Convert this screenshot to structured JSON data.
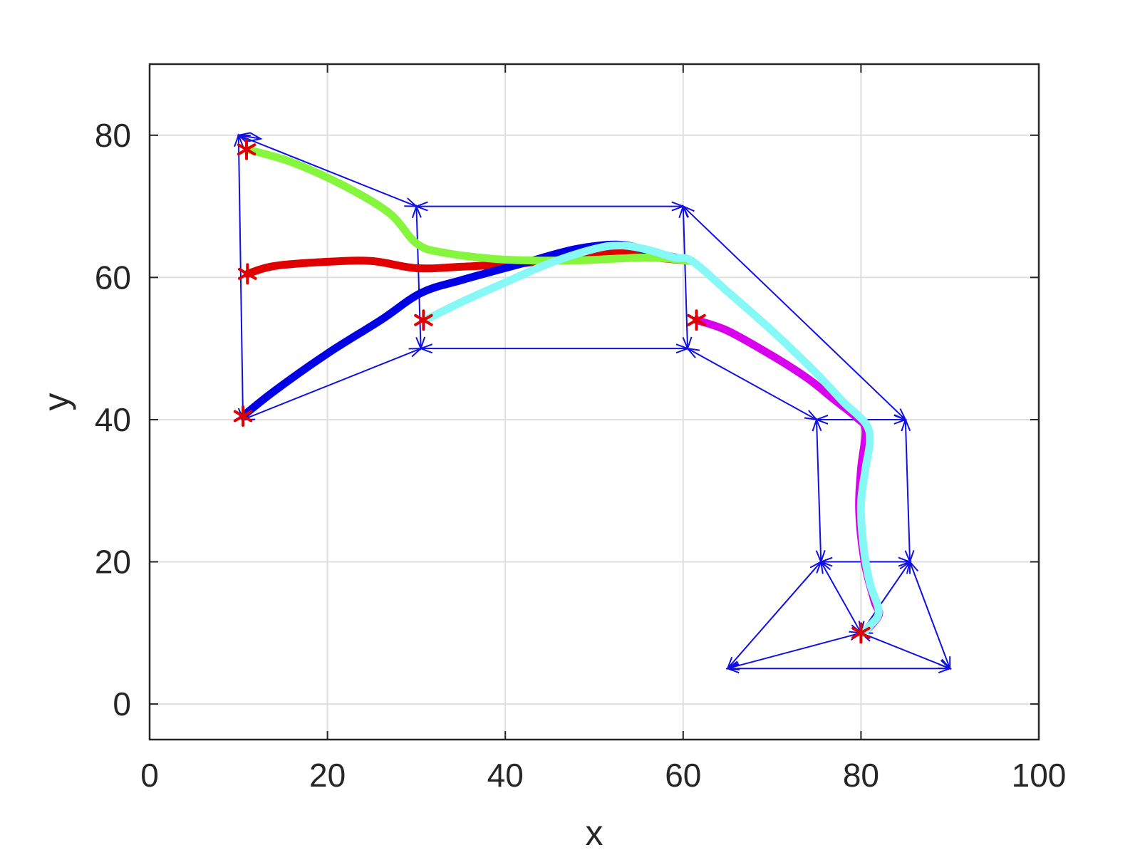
{
  "chart_data": {
    "type": "line",
    "title": "",
    "xlabel": "x",
    "ylabel": "y",
    "xlim": [
      0,
      100
    ],
    "ylim": [
      -5,
      90
    ],
    "xticks": [
      0,
      20,
      40,
      60,
      80,
      100
    ],
    "yticks": [
      0,
      20,
      40,
      60,
      80
    ],
    "grid": true,
    "colors": {
      "axis": "#262626",
      "grid": "#dfdfdf",
      "network": "#1010e6",
      "marker": "#e00000"
    },
    "network_edges": [
      [
        [
          10,
          80
        ],
        [
          12.5,
          79.5
        ]
      ],
      [
        [
          10,
          80
        ],
        [
          30,
          70
        ]
      ],
      [
        [
          10,
          80
        ],
        [
          10.5,
          40
        ]
      ],
      [
        [
          10.5,
          40
        ],
        [
          30.5,
          50
        ]
      ],
      [
        [
          30,
          70
        ],
        [
          30.5,
          50
        ]
      ],
      [
        [
          30,
          70
        ],
        [
          60,
          70
        ]
      ],
      [
        [
          30.5,
          50
        ],
        [
          60.5,
          50
        ]
      ],
      [
        [
          60,
          70
        ],
        [
          60.5,
          50
        ]
      ],
      [
        [
          60,
          70
        ],
        [
          85,
          40
        ]
      ],
      [
        [
          60.5,
          50
        ],
        [
          75,
          40
        ]
      ],
      [
        [
          75,
          40
        ],
        [
          85,
          40
        ]
      ],
      [
        [
          75,
          40
        ],
        [
          75.5,
          20
        ]
      ],
      [
        [
          85,
          40
        ],
        [
          85.5,
          20
        ]
      ],
      [
        [
          75.5,
          20
        ],
        [
          85.5,
          20
        ]
      ],
      [
        [
          75.5,
          20
        ],
        [
          80,
          10
        ]
      ],
      [
        [
          75.5,
          20
        ],
        [
          65,
          5
        ]
      ],
      [
        [
          85.5,
          20
        ],
        [
          80,
          10
        ]
      ],
      [
        [
          85.5,
          20
        ],
        [
          90,
          5
        ]
      ],
      [
        [
          65,
          5
        ],
        [
          90,
          5
        ]
      ],
      [
        [
          65,
          5
        ],
        [
          80,
          10
        ]
      ],
      [
        [
          80,
          10
        ],
        [
          90,
          5
        ]
      ]
    ],
    "series": [
      {
        "color": "#e00000",
        "points": [
          [
            11,
            60.5
          ],
          [
            14,
            61.6
          ],
          [
            20,
            62.2
          ],
          [
            25,
            62.3
          ],
          [
            30,
            61.3
          ],
          [
            35,
            61.5
          ],
          [
            42,
            62
          ],
          [
            48,
            63
          ],
          [
            53,
            63.6
          ],
          [
            57,
            62.8
          ],
          [
            61,
            62.3
          ]
        ]
      },
      {
        "color": "#0000e6",
        "points": [
          [
            10.5,
            40.5
          ],
          [
            14,
            44
          ],
          [
            20,
            49.3
          ],
          [
            26,
            54
          ],
          [
            30.5,
            57.8
          ],
          [
            35,
            59.6
          ],
          [
            42,
            62
          ],
          [
            48,
            64
          ],
          [
            53,
            64.6
          ],
          [
            57,
            63.4
          ],
          [
            61,
            62.3
          ]
        ]
      },
      {
        "color": "#86f53d",
        "points": [
          [
            11,
            78
          ],
          [
            16,
            76.2
          ],
          [
            22,
            72.8
          ],
          [
            27,
            69
          ],
          [
            30,
            64.8
          ],
          [
            33,
            63.5
          ],
          [
            40,
            62.5
          ],
          [
            48,
            62.4
          ],
          [
            56,
            62.8
          ],
          [
            61,
            62.3
          ]
        ]
      },
      {
        "color": "#d900ee",
        "points": [
          [
            61.5,
            54
          ],
          [
            65,
            52.5
          ],
          [
            70,
            49
          ],
          [
            74,
            45.8
          ],
          [
            77,
            42.8
          ],
          [
            79.5,
            40.3
          ],
          [
            80.5,
            38.5
          ],
          [
            80,
            33
          ],
          [
            79.8,
            27
          ],
          [
            80.4,
            20
          ],
          [
            81.5,
            14.5
          ],
          [
            82,
            12.5
          ],
          [
            80.3,
            10
          ]
        ]
      },
      {
        "color": "#86f8f6",
        "points": [
          [
            31,
            54
          ],
          [
            35,
            56.5
          ],
          [
            40,
            59.3
          ],
          [
            45,
            62
          ],
          [
            50,
            64
          ],
          [
            53,
            64.5
          ],
          [
            56,
            63.9
          ],
          [
            59,
            62.8
          ],
          [
            61,
            62.3
          ],
          [
            65,
            58
          ],
          [
            70,
            52.5
          ],
          [
            75,
            46.5
          ],
          [
            78,
            42.5
          ],
          [
            80.5,
            39.5
          ],
          [
            81,
            37
          ],
          [
            80.5,
            33
          ],
          [
            80,
            28
          ],
          [
            80.3,
            22
          ],
          [
            81,
            17
          ],
          [
            82,
            13
          ],
          [
            81,
            11
          ],
          [
            80.3,
            10
          ]
        ]
      }
    ],
    "markers": [
      [
        10.9,
        78
      ],
      [
        11,
        60.5
      ],
      [
        10.5,
        40.5
      ],
      [
        30.8,
        54
      ],
      [
        61.5,
        54
      ],
      [
        80,
        10
      ]
    ]
  }
}
